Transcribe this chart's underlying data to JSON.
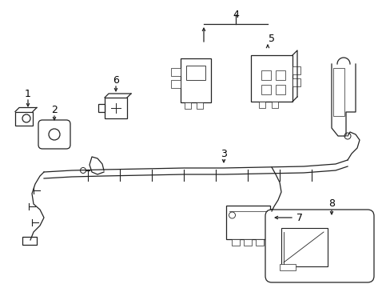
{
  "bg_color": "#ffffff",
  "line_color": "#222222",
  "text_color": "#000000",
  "fig_width": 4.89,
  "fig_height": 3.6,
  "dpi": 100
}
